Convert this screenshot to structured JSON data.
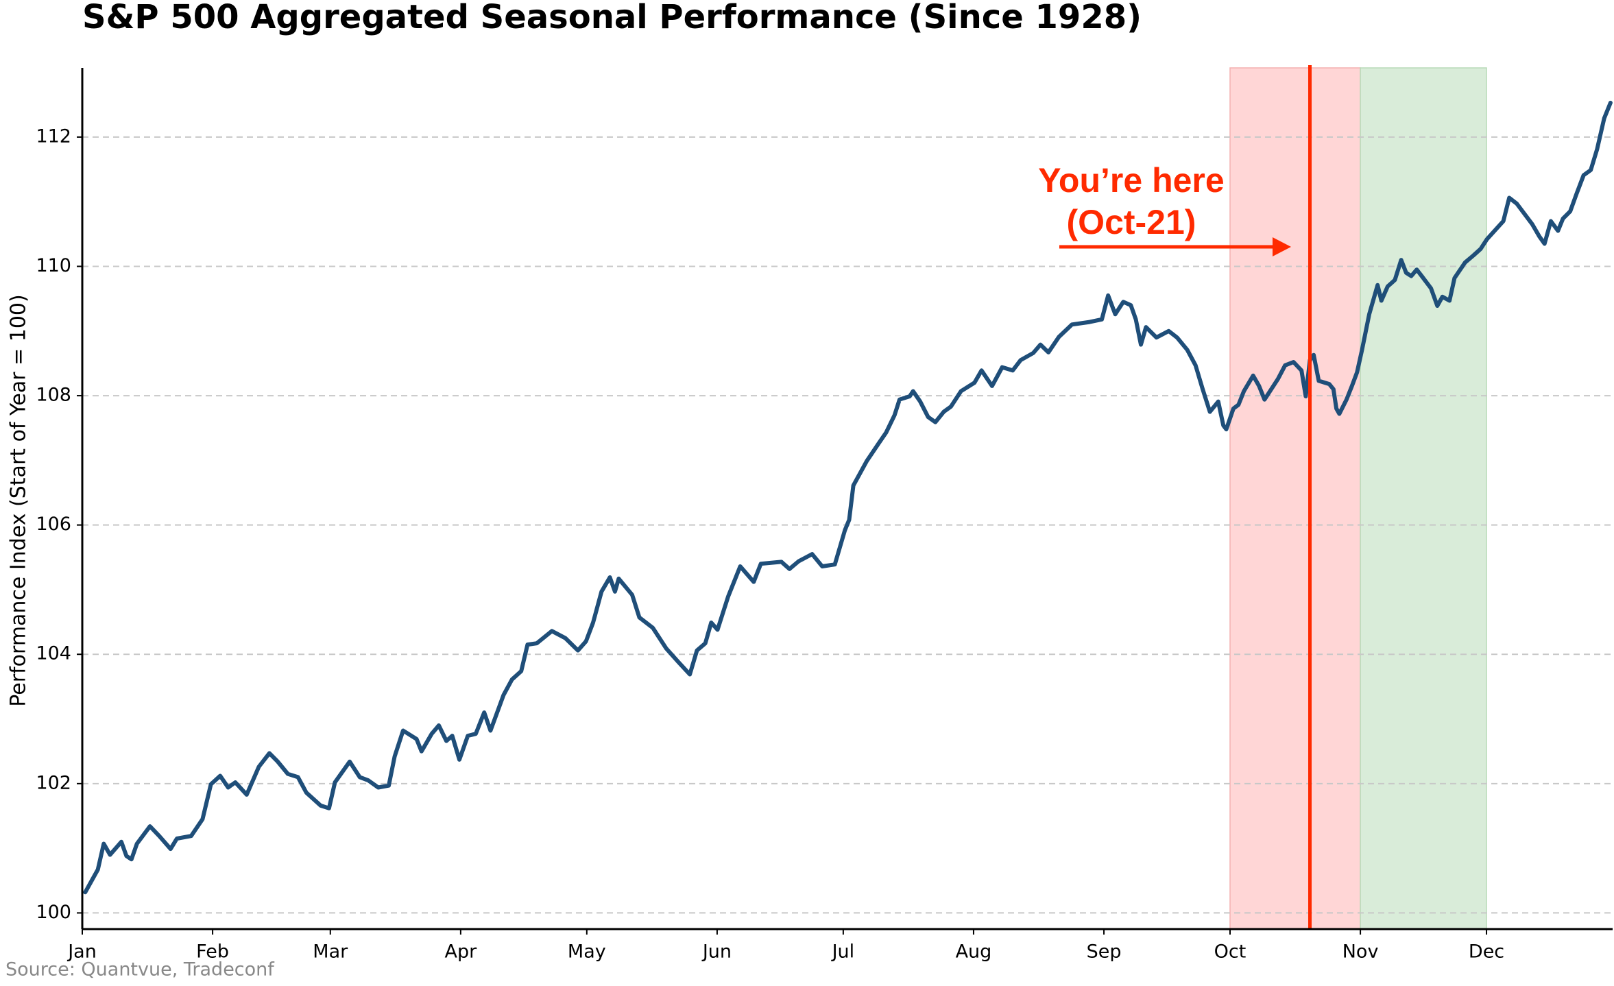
{
  "chart_data": {
    "type": "line",
    "title": "S&P 500 Aggregated Seasonal Performance (Since 1928)",
    "y_label": "Performance Index (Start of Year = 100)",
    "source": "Source: Quantvue, Tradeconf",
    "xlim": [
      0,
      364
    ],
    "ylim": [
      99.75,
      113.07
    ],
    "xticks": [
      {
        "value": 0,
        "label": "Jan"
      },
      {
        "value": 31,
        "label": "Feb"
      },
      {
        "value": 59,
        "label": "Mar"
      },
      {
        "value": 90,
        "label": "Apr"
      },
      {
        "value": 120,
        "label": "May"
      },
      {
        "value": 151,
        "label": "Jun"
      },
      {
        "value": 181,
        "label": "Jul"
      },
      {
        "value": 212,
        "label": "Aug"
      },
      {
        "value": 243,
        "label": "Sep"
      },
      {
        "value": 273,
        "label": "Oct"
      },
      {
        "value": 304,
        "label": "Nov"
      },
      {
        "value": 334,
        "label": "Dec"
      }
    ],
    "yticks": [
      100,
      102,
      104,
      106,
      108,
      110,
      112
    ],
    "grid": true,
    "x": [
      0.7,
      3.7,
      5.1,
      6.6,
      9.3,
      10.5,
      11.7,
      13,
      16.1,
      18.3,
      21,
      22.5,
      25.9,
      28.6,
      30.6,
      32.8,
      34.7,
      36.4,
      39.1,
      42,
      44.5,
      46.5,
      48.9,
      51.3,
      53.3,
      56.7,
      58.7,
      60.1,
      63.6,
      66,
      68,
      70.4,
      72.9,
      74.3,
      76.3,
      79.5,
      80.7,
      83.1,
      84.8,
      86.6,
      88,
      89.7,
      91.7,
      93.6,
      95.6,
      97.1,
      100.2,
      102.2,
      104.4,
      105.9,
      108.1,
      111.7,
      114.9,
      117.9,
      119.8,
      121.5,
      123.5,
      125.5,
      126.7,
      127.6,
      130.8,
      132.5,
      135.7,
      138.9,
      141.8,
      144.5,
      146.2,
      148.2,
      149.6,
      151.1,
      153.6,
      156.5,
      159.7,
      161.4,
      166.3,
      168.2,
      170.4,
      173.6,
      176,
      179,
      181.4,
      182.4,
      183.4,
      186.6,
      189.5,
      191.2,
      193.2,
      194.4,
      196.8,
      197.6,
      199.3,
      201.2,
      202.9,
      204.9,
      206.6,
      209,
      212.2,
      213.9,
      216.4,
      218.8,
      221.3,
      223.2,
      226.2,
      227.9,
      229.8,
      232.3,
      235.4,
      239.6,
      242.5,
      244,
      245.7,
      247.6,
      249.4,
      250.6,
      251.8,
      253,
      255.5,
      258.4,
      260.4,
      262.8,
      264.8,
      266.5,
      268.2,
      270.2,
      271.4,
      272.1,
      273.8,
      275,
      276.3,
      278.5,
      279.9,
      281.2,
      284.4,
      286.1,
      288.1,
      290,
      291,
      292,
      292.9,
      294.1,
      296.6,
      297.6,
      298.3,
      299,
      300.7,
      302,
      303.2,
      304.4,
      306.1,
      308.1,
      309,
      310.5,
      312.2,
      313.7,
      314.9,
      316.1,
      317.4,
      318.6,
      320.8,
      322.3,
      323.5,
      325.2,
      326.4,
      328.9,
      330.9,
      332.6,
      334.1,
      338,
      339.4,
      341.2,
      344.9,
      346.6,
      347.8,
      349.3,
      351,
      352.2,
      353.9,
      355.4,
      357.1,
      358.8,
      360.3,
      362,
      363.5
    ],
    "series": [
      {
        "name": "S&P 500",
        "color": "#1f4e79",
        "values": [
          100.32,
          100.67,
          101.07,
          100.9,
          101.1,
          100.88,
          100.83,
          101.07,
          101.34,
          101.19,
          100.99,
          101.15,
          101.19,
          101.45,
          101.99,
          102.12,
          101.94,
          102.02,
          101.83,
          102.26,
          102.47,
          102.34,
          102.15,
          102.1,
          101.86,
          101.66,
          101.62,
          102.02,
          102.34,
          102.1,
          102.05,
          101.94,
          101.97,
          102.42,
          102.82,
          102.69,
          102.5,
          102.77,
          102.9,
          102.66,
          102.74,
          102.37,
          102.74,
          102.77,
          103.1,
          102.82,
          103.37,
          103.61,
          103.74,
          104.15,
          104.17,
          104.36,
          104.25,
          104.06,
          104.2,
          104.49,
          104.97,
          105.19,
          104.97,
          105.17,
          104.92,
          104.57,
          104.41,
          104.09,
          103.88,
          103.69,
          104.06,
          104.17,
          104.49,
          104.38,
          104.89,
          105.36,
          105.12,
          105.4,
          105.43,
          105.32,
          105.44,
          105.55,
          105.36,
          105.39,
          105.92,
          106.08,
          106.61,
          106.99,
          107.27,
          107.43,
          107.7,
          107.94,
          107.99,
          108.07,
          107.91,
          107.67,
          107.59,
          107.75,
          107.83,
          108.07,
          108.2,
          108.39,
          108.15,
          108.44,
          108.39,
          108.55,
          108.66,
          108.79,
          108.67,
          108.91,
          109.1,
          109.14,
          109.18,
          109.55,
          109.26,
          109.45,
          109.4,
          109.18,
          108.79,
          109.06,
          108.9,
          109,
          108.9,
          108.71,
          108.47,
          108.1,
          107.75,
          107.91,
          107.54,
          107.48,
          107.8,
          107.86,
          108.07,
          108.31,
          108.15,
          107.94,
          108.26,
          108.47,
          108.52,
          108.39,
          107.99,
          108.55,
          108.63,
          108.23,
          108.18,
          108.1,
          107.8,
          107.72,
          107.94,
          108.15,
          108.36,
          108.71,
          109.26,
          109.71,
          109.47,
          109.69,
          109.79,
          110.1,
          109.9,
          109.85,
          109.95,
          109.85,
          109.66,
          109.39,
          109.53,
          109.47,
          109.82,
          110.06,
          110.17,
          110.27,
          110.42,
          110.7,
          111.06,
          110.97,
          110.65,
          110.46,
          110.35,
          110.7,
          110.55,
          110.74,
          110.85,
          111.12,
          111.41,
          111.49,
          111.81,
          112.29,
          112.53
        ]
      }
    ],
    "spans": [
      {
        "x0": 273,
        "x1": 304,
        "color": "#ffd6d6"
      },
      {
        "x0": 304,
        "x1": 334,
        "color": "#d9ecd9"
      }
    ],
    "marker_line": {
      "x": 292,
      "color": "#ff2a00"
    },
    "annotation": {
      "lines": [
        "You’re here",
        "(Oct-21)"
      ],
      "color": "#ff2a00"
    }
  }
}
